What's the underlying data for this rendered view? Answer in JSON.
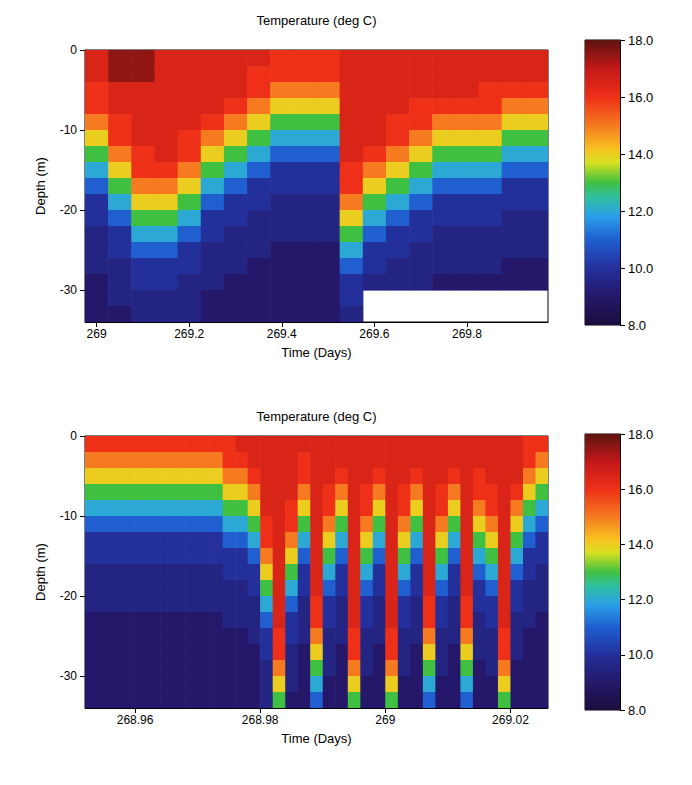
{
  "chart_data": [
    {
      "type": "heatmap",
      "title": "Temperature (deg C)",
      "x_label": "Time (Days)",
      "y_label": "Depth (m)",
      "x": [
        269,
        269.05,
        269.1,
        269.15,
        269.2,
        269.25,
        269.3,
        269.35,
        269.4,
        269.45,
        269.5,
        269.55,
        269.6,
        269.65,
        269.7,
        269.75,
        269.8,
        269.85,
        269.9,
        269.95
      ],
      "y": [
        -1,
        -3,
        -5,
        -7,
        -9,
        -11,
        -13,
        -15,
        -17,
        -19,
        -21,
        -23,
        -25,
        -27,
        -29,
        -31,
        -33
      ],
      "values": [
        [
          16.5,
          16.5,
          16,
          16,
          15,
          14,
          13,
          12,
          11,
          10,
          10,
          9.5,
          9.5,
          9.5,
          9,
          9,
          9
        ],
        [
          17.5,
          17.5,
          16.5,
          16.5,
          16,
          16,
          15,
          14,
          13,
          12,
          11,
          10,
          10,
          9.5,
          9.5,
          9.5,
          9
        ],
        [
          17.5,
          17.5,
          16.5,
          16.5,
          16.5,
          16.5,
          16,
          16,
          15,
          14,
          13,
          12,
          11,
          10,
          10,
          9.5,
          9.5
        ],
        [
          16.5,
          16.5,
          16.5,
          16.5,
          16.5,
          16.5,
          16.5,
          16,
          15,
          14,
          13,
          12,
          11,
          10,
          10,
          9.5,
          9.5
        ],
        [
          16.5,
          16.5,
          16.5,
          16.5,
          16.5,
          16,
          16,
          15,
          14,
          13,
          12,
          11,
          10,
          10,
          9.5,
          9.5,
          9.5
        ],
        [
          16.5,
          16.5,
          16.5,
          16.5,
          16,
          15,
          14,
          13,
          12,
          11,
          10,
          10,
          9.5,
          9.5,
          9.5,
          9,
          9
        ],
        [
          16.5,
          16.5,
          16.5,
          16,
          15,
          14,
          13,
          12,
          11,
          10,
          10,
          9.5,
          9.5,
          9.5,
          9,
          9,
          9
        ],
        [
          16.5,
          16,
          16,
          15,
          14,
          13,
          12,
          11,
          10,
          10,
          9.5,
          9.5,
          9.5,
          9,
          9,
          9,
          9
        ],
        [
          16,
          16,
          15,
          14,
          13,
          12,
          11,
          10,
          10,
          9.5,
          9.5,
          9.5,
          9,
          9,
          9,
          9,
          9
        ],
        [
          16,
          16,
          15,
          14,
          13,
          12,
          11,
          10,
          10,
          9.5,
          9.5,
          9.5,
          9,
          9,
          9,
          9,
          9
        ],
        [
          16,
          16,
          15,
          14,
          13,
          12,
          11,
          10,
          10,
          9.5,
          9.5,
          9.5,
          9,
          9,
          9,
          9,
          9
        ],
        [
          16.5,
          16.5,
          16.5,
          16.5,
          16.5,
          16.5,
          16.5,
          16,
          16,
          15,
          14,
          13,
          12,
          11,
          10,
          10,
          9.5
        ],
        [
          16.5,
          16.5,
          16.5,
          16.5,
          16.5,
          16.5,
          16,
          15,
          14,
          13,
          12,
          11,
          10,
          10,
          9.5,
          null,
          null
        ],
        [
          16.5,
          16.5,
          16.5,
          16.5,
          16,
          16,
          15,
          14,
          13,
          12,
          11,
          10,
          10,
          9.5,
          9.5,
          null,
          null
        ],
        [
          16.5,
          16.5,
          16.5,
          16,
          16,
          15,
          14,
          13,
          12,
          11,
          10,
          10,
          9.5,
          9.5,
          9.5,
          null,
          null
        ],
        [
          16.5,
          16.5,
          16.5,
          16,
          15,
          14,
          13,
          12,
          11,
          10,
          10,
          9.5,
          9.5,
          9.5,
          9,
          null,
          null
        ],
        [
          16.5,
          16.5,
          16.5,
          16,
          15,
          14,
          13,
          12,
          11,
          10,
          10,
          9.5,
          9.5,
          9.5,
          9,
          null,
          null
        ],
        [
          16.5,
          16.5,
          16,
          16,
          15,
          14,
          13,
          12,
          11,
          10,
          10,
          9.5,
          9.5,
          9.5,
          9,
          null,
          null
        ],
        [
          16.5,
          16.5,
          16,
          15,
          14,
          13,
          12,
          11,
          10,
          10,
          9.5,
          9.5,
          9.5,
          9,
          9,
          null,
          null
        ],
        [
          16.5,
          16.5,
          16,
          15,
          14,
          13,
          12,
          11,
          10,
          10,
          9.5,
          9.5,
          9.5,
          9,
          9,
          null,
          null
        ]
      ],
      "xlim": [
        268.975,
        269.975
      ],
      "xticks": [
        269,
        269.2,
        269.4,
        269.6,
        269.8
      ],
      "ylim": [
        -34,
        0
      ],
      "yticks": [
        0,
        -10,
        -20,
        -30
      ],
      "colorbar": {
        "range": [
          8,
          18
        ],
        "ticks": [
          {
            "value": 8,
            "label": "8.0"
          },
          {
            "value": 10,
            "label": "10.0"
          },
          {
            "value": 12,
            "label": "12.0"
          },
          {
            "value": 14,
            "label": "14.0"
          },
          {
            "value": 16,
            "label": "16.0"
          },
          {
            "value": 18,
            "label": "18.0"
          }
        ]
      },
      "grid": false
    },
    {
      "type": "heatmap",
      "title": "Temperature (deg C)",
      "x_label": "Time (Days)",
      "y_label": "Depth (m)",
      "x": [
        268.953,
        268.955,
        268.957,
        268.959,
        268.961,
        268.963,
        268.965,
        268.967,
        268.969,
        268.971,
        268.973,
        268.975,
        268.977,
        268.979,
        268.981,
        268.983,
        268.985,
        268.987,
        268.989,
        268.991,
        268.993,
        268.995,
        268.997,
        268.999,
        269.001,
        269.003,
        269.005,
        269.007,
        269.009,
        269.011,
        269.013,
        269.015,
        269.017,
        269.019,
        269.021,
        269.023,
        269.025
      ],
      "y": [
        -1,
        -3,
        -5,
        -7,
        -9,
        -11,
        -13,
        -15,
        -17,
        -19,
        -21,
        -23,
        -25,
        -27,
        -29,
        -31,
        -33
      ],
      "values": [
        [
          16,
          15,
          14,
          13,
          12,
          11,
          10,
          10,
          9.5,
          9.5,
          9.5,
          9,
          9,
          9,
          9,
          9,
          9
        ],
        [
          16,
          15,
          14,
          13,
          12,
          11,
          10,
          10,
          9.5,
          9.5,
          9.5,
          9,
          9,
          9,
          9,
          9,
          9
        ],
        [
          16,
          15,
          14,
          13,
          12,
          11,
          10,
          10,
          9.5,
          9.5,
          9.5,
          9,
          9,
          9,
          9,
          9,
          9
        ],
        [
          16,
          15,
          14,
          13,
          12,
          11,
          10,
          10,
          9.5,
          9.5,
          9.5,
          9,
          9,
          9,
          9,
          9,
          9
        ],
        [
          16,
          15,
          14,
          13,
          12,
          11,
          10,
          10,
          9.5,
          9.5,
          9.5,
          9,
          9,
          9,
          9,
          9,
          9
        ],
        [
          16,
          15,
          14,
          13,
          12,
          11,
          10,
          10,
          9.5,
          9.5,
          9.5,
          9,
          9,
          9,
          9,
          9,
          9
        ],
        [
          16,
          15,
          14,
          13,
          12,
          11,
          10,
          10,
          9.5,
          9.5,
          9.5,
          9,
          9,
          9,
          9,
          9,
          9
        ],
        [
          16,
          15,
          14,
          13,
          12,
          11,
          10,
          10,
          9.5,
          9.5,
          9.5,
          9,
          9,
          9,
          9,
          9,
          9
        ],
        [
          16,
          15,
          14,
          13,
          12,
          11,
          10,
          10,
          9.5,
          9.5,
          9.5,
          9,
          9,
          9,
          9,
          9,
          9
        ],
        [
          16,
          15,
          14,
          13,
          12,
          11,
          10,
          10,
          9.5,
          9.5,
          9.5,
          9,
          9,
          9,
          9,
          9,
          9
        ],
        [
          16,
          15,
          14,
          13,
          12,
          11,
          10,
          10,
          9.5,
          9.5,
          9.5,
          9,
          9,
          9,
          9,
          9,
          9
        ],
        [
          16,
          16,
          15,
          14,
          13,
          12,
          11,
          10,
          10,
          9.5,
          9.5,
          9.5,
          9,
          9,
          9,
          9,
          9
        ],
        [
          16.5,
          16,
          15,
          14,
          13,
          12,
          11,
          10,
          10,
          9.5,
          9.5,
          9.5,
          9,
          9,
          9,
          9,
          9
        ],
        [
          16.5,
          16.5,
          16,
          15,
          14,
          13,
          12,
          11,
          10,
          10,
          9.5,
          9.5,
          9.5,
          9,
          9,
          9,
          9
        ],
        [
          16.5,
          16.5,
          16.5,
          16.5,
          16.5,
          16,
          16,
          15,
          14,
          13,
          12,
          11,
          10,
          10,
          9.5,
          9.5,
          9.5
        ],
        [
          16.5,
          16.5,
          16.5,
          16.5,
          16.5,
          16.5,
          16.5,
          16.5,
          16.5,
          16.5,
          16.5,
          16.5,
          16,
          16,
          15,
          14,
          13
        ],
        [
          16.5,
          16.5,
          16.5,
          16.5,
          16,
          16,
          15,
          14,
          13,
          12,
          11,
          10,
          10,
          9.5,
          9.5,
          9.5,
          9
        ],
        [
          16.5,
          16,
          16,
          15,
          14,
          13,
          12,
          11,
          10,
          10,
          9.5,
          9.5,
          9.5,
          9,
          9,
          9,
          9
        ],
        [
          16.5,
          16.5,
          16.5,
          16.5,
          16.5,
          16.5,
          16.5,
          16.5,
          16.5,
          16.5,
          16,
          16,
          15,
          14,
          13,
          12,
          11
        ],
        [
          16.5,
          16.5,
          16.5,
          16,
          16,
          15,
          14,
          13,
          12,
          11,
          10,
          10,
          9.5,
          9.5,
          9.5,
          9,
          9
        ],
        [
          16.5,
          16.5,
          16,
          15,
          14,
          13,
          12,
          11,
          10,
          10,
          9.5,
          9.5,
          9.5,
          9,
          9,
          9,
          9
        ],
        [
          16.5,
          16.5,
          16.5,
          16.5,
          16.5,
          16.5,
          16.5,
          16.5,
          16.5,
          16.5,
          16.5,
          16.5,
          16,
          16,
          15,
          14,
          13
        ],
        [
          16.5,
          16.5,
          16.5,
          16,
          16,
          15,
          14,
          13,
          12,
          11,
          10,
          10,
          9.5,
          9.5,
          9.5,
          9,
          9
        ],
        [
          16.5,
          16.5,
          16,
          15,
          14,
          13,
          12,
          11,
          10,
          10,
          9.5,
          9.5,
          9.5,
          9,
          9,
          9,
          9
        ],
        [
          16.5,
          16.5,
          16.5,
          16.5,
          16.5,
          16.5,
          16.5,
          16.5,
          16.5,
          16.5,
          16.5,
          16.5,
          16,
          16,
          15,
          14,
          13
        ],
        [
          16.5,
          16.5,
          16.5,
          16,
          16,
          15,
          14,
          13,
          12,
          11,
          10,
          10,
          9.5,
          9.5,
          9.5,
          9,
          9
        ],
        [
          16.5,
          16.5,
          16,
          15,
          14,
          13,
          12,
          11,
          10,
          10,
          9.5,
          9.5,
          9.5,
          9,
          9,
          9,
          9
        ],
        [
          16.5,
          16.5,
          16.5,
          16.5,
          16.5,
          16.5,
          16.5,
          16.5,
          16.5,
          16.5,
          16,
          16,
          15,
          14,
          13,
          12,
          11
        ],
        [
          16.5,
          16.5,
          16.5,
          16,
          16,
          15,
          14,
          13,
          12,
          11,
          10,
          10,
          9.5,
          9.5,
          9.5,
          9,
          9
        ],
        [
          16.5,
          16.5,
          16,
          15,
          14,
          13,
          12,
          11,
          10,
          10,
          9.5,
          9.5,
          9.5,
          9,
          9,
          9,
          9
        ],
        [
          16.5,
          16.5,
          16.5,
          16.5,
          16.5,
          16.5,
          16.5,
          16.5,
          16.5,
          16.5,
          16,
          16,
          15,
          14,
          13,
          12,
          11
        ],
        [
          16.5,
          16.5,
          16,
          16,
          15,
          14,
          13,
          12,
          11,
          10,
          10,
          9.5,
          9.5,
          9.5,
          9,
          9,
          9
        ],
        [
          16.5,
          16.5,
          16.5,
          16,
          16,
          15,
          14,
          13,
          12,
          11,
          10,
          10,
          9.5,
          9.5,
          9.5,
          9,
          9
        ],
        [
          16.5,
          16.5,
          16.5,
          16.5,
          16.5,
          16.5,
          16.5,
          16.5,
          16.5,
          16.5,
          16.5,
          16.5,
          16,
          16,
          15,
          14,
          13
        ],
        [
          16.5,
          16.5,
          16.5,
          16,
          15,
          14,
          13,
          12,
          11,
          10,
          10,
          9.5,
          9.5,
          9.5,
          9,
          9,
          9
        ],
        [
          16,
          16,
          15,
          14,
          13,
          12,
          11,
          10,
          10,
          9.5,
          9.5,
          9.5,
          9,
          9,
          9,
          9,
          9
        ],
        [
          16,
          15,
          14,
          13,
          12,
          11,
          10,
          10,
          9.5,
          9.5,
          9.5,
          9,
          9,
          9,
          9,
          9,
          9
        ]
      ],
      "xlim": [
        268.952,
        269.026
      ],
      "xticks": [
        268.96,
        268.98,
        269,
        269.02
      ],
      "ylim": [
        -34,
        0
      ],
      "yticks": [
        0,
        -10,
        -20,
        -30
      ],
      "colorbar": {
        "range": [
          8,
          18
        ],
        "ticks": [
          {
            "value": 8,
            "label": "8.0"
          },
          {
            "value": 10,
            "label": "10.0"
          },
          {
            "value": 12,
            "label": "12.0"
          },
          {
            "value": 14,
            "label": "14.0"
          },
          {
            "value": 16,
            "label": "16.0"
          },
          {
            "value": 18,
            "label": "18.0"
          }
        ]
      },
      "grid": false
    }
  ]
}
